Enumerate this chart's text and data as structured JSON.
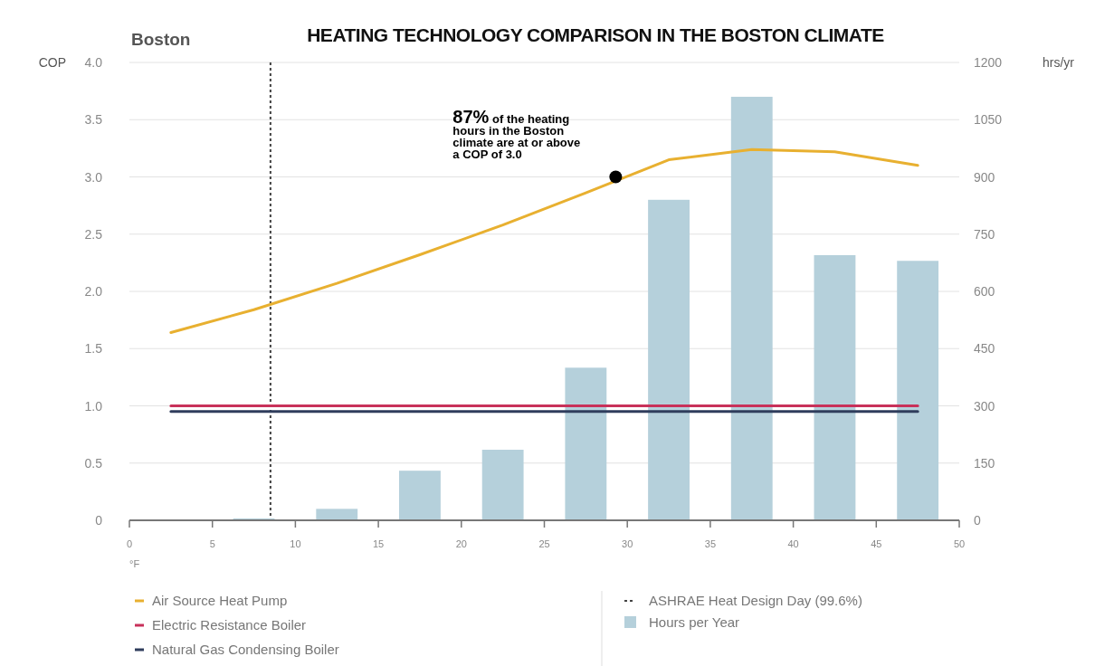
{
  "chart_data": {
    "type": "line",
    "title": "HEATING TECHNOLOGY COMPARISON IN THE BOSTON CLIMATE",
    "subtitle": "Boston",
    "xlabel": "°F",
    "ylabel": "COP",
    "y2label": "hrs/yr",
    "xlim": [
      0,
      50
    ],
    "xticks": [
      0,
      5,
      10,
      15,
      20,
      25,
      30,
      35,
      40,
      45,
      50
    ],
    "ylim": [
      0,
      4
    ],
    "yticks": [
      {
        "value": 0,
        "label": "0"
      },
      {
        "value": 0.5,
        "label": "0.5"
      },
      {
        "value": 1,
        "label": "1.0"
      },
      {
        "value": 1.5,
        "label": "1.5"
      },
      {
        "value": 2,
        "label": "2.0"
      },
      {
        "value": 2.5,
        "label": "2.5"
      },
      {
        "value": 3,
        "label": "3.0"
      },
      {
        "value": 3.5,
        "label": "3.5"
      },
      {
        "value": 4,
        "label": "4.0"
      }
    ],
    "y2lim": [
      0,
      1200
    ],
    "y2ticks": [
      0,
      150,
      300,
      450,
      600,
      750,
      900,
      1050,
      1200
    ],
    "grid": "y",
    "legend": "bottom",
    "series": [
      {
        "name": "Hours per Year",
        "type": "bar",
        "axis": "y2",
        "color": "#b5d0db",
        "x": [
          7.5,
          12.5,
          17.5,
          22.5,
          27.5,
          32.5,
          37.5,
          42.5,
          47.5
        ],
        "values": [
          5,
          30,
          130,
          185,
          400,
          840,
          1110,
          695,
          680
        ]
      },
      {
        "name": "Air Source Heat Pump",
        "color": "#e8b030",
        "x": [
          2.5,
          7.5,
          12.5,
          17.5,
          22.5,
          27.5,
          32.5,
          37.5,
          42.5,
          47.5
        ],
        "values": [
          1.64,
          1.84,
          2.07,
          2.32,
          2.58,
          2.86,
          3.15,
          3.24,
          3.22,
          3.1
        ]
      },
      {
        "name": "Electric Resistance Boiler",
        "color": "#c8315a",
        "x": [
          2.5,
          47.5
        ],
        "values": [
          1.0,
          1.0
        ]
      },
      {
        "name": "Natural Gas Condensing Boiler",
        "color": "#2f3d5c",
        "x": [
          2.5,
          47.5
        ],
        "values": [
          0.95,
          0.95
        ]
      }
    ],
    "ref_lines": [
      {
        "axis": "x",
        "value": 8.5,
        "label": "ASHRAE Heat Design Day (99.6%)",
        "color": "#444444",
        "line_style": "dotted"
      }
    ],
    "annotations": [
      {
        "text": "87% of the heating hours in the Boston climate are at or above a COP of 3.0",
        "x": 29.3,
        "y": 3.0
      }
    ]
  }
}
